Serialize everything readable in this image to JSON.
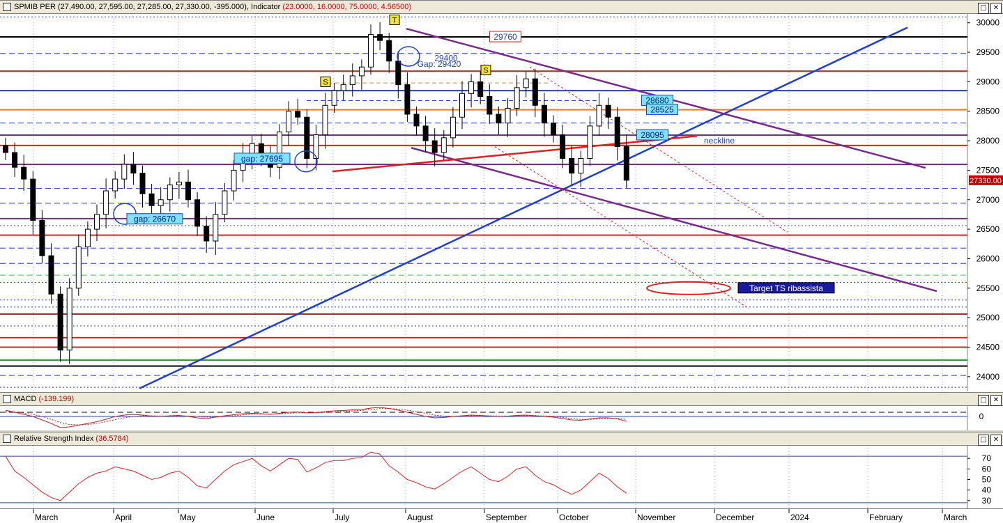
{
  "main_pane": {
    "title": "SPMIB PER",
    "ohlc": "(27,490.00, 27,595.00, 27,285.00, 27,330.00, -395.000)",
    "indicator_label": "Indicator",
    "indicator_values": "(23.0000, 16.0000, 75.0000, 4.56500)"
  },
  "macd_pane": {
    "title": "MACD",
    "value": "(-139.199)"
  },
  "rsi_pane": {
    "title": "Relative Strength Index",
    "value": "(36.5784)"
  },
  "window_buttons": {
    "restore": "□",
    "close": "✕"
  },
  "colors": {
    "price_tag_bg": "#c00000",
    "trendline_blue": "#1f3fd0",
    "channel_purple": "#7a2a8a",
    "neckline_red": "#e02020",
    "label_box": "#7fe3ff"
  },
  "chart_data": [
    {
      "type": "candlestick",
      "title": "SPMIB PER",
      "y_axis_ticks": [
        30000,
        29500,
        29000,
        28500,
        28000,
        27500,
        27000,
        26500,
        26000,
        25500,
        25000,
        24500,
        24000
      ],
      "ylim": [
        23750,
        30150
      ],
      "last_price_tag": "27330.00",
      "x_axis_labels": [
        "March",
        "April",
        "May",
        "June",
        "July",
        "August",
        "September",
        "October",
        "November",
        "December",
        "2024",
        "February",
        "March"
      ],
      "closes": [
        27800,
        27550,
        27350,
        26650,
        26050,
        25400,
        24450,
        25500,
        26200,
        26500,
        26750,
        27150,
        27350,
        27600,
        27450,
        27100,
        26900,
        27000,
        27250,
        27300,
        27000,
        26550,
        26300,
        26750,
        27150,
        27500,
        27750,
        27950,
        27700,
        27550,
        28150,
        28500,
        28400,
        27700,
        28100,
        28600,
        28850,
        28950,
        29100,
        29250,
        29800,
        29700,
        29350,
        28950,
        28450,
        28250,
        28000,
        27800,
        28050,
        28400,
        28800,
        29000,
        28750,
        28450,
        28300,
        28550,
        28900,
        29050,
        28600,
        28300,
        28100,
        27700,
        27450,
        27700,
        28250,
        28600,
        28400,
        27900,
        27330
      ],
      "annotations": [
        {
          "text": "T",
          "price": 30050
        },
        {
          "text": "S",
          "price": 29000
        },
        {
          "text": "S",
          "price": 29200
        },
        {
          "text": "29760",
          "price": 29760
        },
        {
          "text": "29400",
          "price": 29400
        },
        {
          "text": "Gap: 29420",
          "price": 29300
        },
        {
          "text": "28680",
          "price": 28680
        },
        {
          "text": "28525",
          "price": 28525
        },
        {
          "text": "28095",
          "price": 28095
        },
        {
          "text": "neckline",
          "price": 28000
        },
        {
          "text": "gap: 27695",
          "price": 27695
        },
        {
          "text": "gap: 26670",
          "price": 26670
        },
        {
          "text": "Target TS ribassista",
          "price": 25500
        }
      ],
      "horizontal_levels": [
        {
          "price": 30100,
          "style": "dotted",
          "color": "#1f3fd0"
        },
        {
          "price": 29760,
          "style": "solid",
          "color": "#000000"
        },
        {
          "price": 29480,
          "style": "dashed",
          "color": "#1f3fd0"
        },
        {
          "price": 29180,
          "style": "solid",
          "color": "#e02020"
        },
        {
          "price": 28850,
          "style": "solid",
          "color": "#1f3fd0"
        },
        {
          "price": 28525,
          "style": "solid",
          "color": "#f07820"
        },
        {
          "price": 28300,
          "style": "dashed",
          "color": "#1f3fd0"
        },
        {
          "price": 28095,
          "style": "solid",
          "color": "#7a2a8a"
        },
        {
          "price": 27920,
          "style": "solid",
          "color": "#e02020"
        },
        {
          "price": 27600,
          "style": "solid",
          "color": "#7a2a8a"
        },
        {
          "price": 27190,
          "style": "dashed",
          "color": "#1f3fd0"
        },
        {
          "price": 26940,
          "style": "dashed",
          "color": "#1f3fd0"
        },
        {
          "price": 26680,
          "style": "solid",
          "color": "#7a2a8a"
        },
        {
          "price": 26560,
          "style": "dotted",
          "color": "#1f3fd0"
        },
        {
          "price": 26400,
          "style": "solid",
          "color": "#e02020"
        },
        {
          "price": 26180,
          "style": "dashed",
          "color": "#1f3fd0"
        },
        {
          "price": 25920,
          "style": "dashed",
          "color": "#1f3fd0"
        },
        {
          "price": 25720,
          "style": "dashed",
          "color": "#40c040"
        },
        {
          "price": 25600,
          "style": "dotted",
          "color": "#1f3fd0"
        },
        {
          "price": 25300,
          "style": "dotted",
          "color": "#1f3fd0"
        },
        {
          "price": 25180,
          "style": "dotted",
          "color": "#1f3fd0"
        },
        {
          "price": 25060,
          "style": "solid",
          "color": "#a03030"
        },
        {
          "price": 24860,
          "style": "dotted",
          "color": "#1f3fd0"
        },
        {
          "price": 24660,
          "style": "solid",
          "color": "#e02020"
        },
        {
          "price": 24500,
          "style": "solid",
          "color": "#e02020"
        },
        {
          "price": 24280,
          "style": "solid",
          "color": "#20a020"
        },
        {
          "price": 24180,
          "style": "solid",
          "color": "#000000"
        },
        {
          "price": 24020,
          "style": "dashed",
          "color": "#1f3fd0"
        },
        {
          "price": 23820,
          "style": "dotted",
          "color": "#1f3fd0"
        }
      ]
    },
    {
      "type": "line",
      "title": "MACD",
      "y_axis_ticks": [
        0
      ],
      "ylim": [
        -400,
        300
      ],
      "series": [
        {
          "values": [
            180,
            120,
            60,
            0,
            -100,
            -200,
            -320,
            -300,
            -250,
            -200,
            -150,
            -80,
            0,
            40,
            60,
            40,
            10,
            0,
            20,
            30,
            0,
            -40,
            -60,
            -20,
            20,
            50,
            80,
            90,
            80,
            60,
            90,
            120,
            130,
            100,
            110,
            140,
            160,
            170,
            190,
            200,
            240,
            260,
            230,
            180,
            120,
            60,
            0,
            -40,
            -30,
            0,
            20,
            40,
            30,
            10,
            0,
            10,
            30,
            40,
            20,
            0,
            -20,
            -60,
            -100,
            -110,
            -70,
            -40,
            -40,
            -70,
            -139
          ]
        },
        {
          "values": [
            150,
            130,
            100,
            60,
            0,
            -80,
            -180,
            -230,
            -240,
            -230,
            -200,
            -150,
            -90,
            -40,
            0,
            20,
            20,
            15,
            15,
            20,
            15,
            0,
            -20,
            -20,
            0,
            20,
            45,
            65,
            72,
            70,
            75,
            90,
            105,
            105,
            105,
            115,
            130,
            145,
            160,
            175,
            200,
            225,
            228,
            210,
            180,
            140,
            90,
            40,
            10,
            5,
            10,
            20,
            25,
            20,
            12,
            10,
            18,
            28,
            25,
            15,
            0,
            -25,
            -60,
            -85,
            -85,
            -70,
            -55,
            -55,
            -80
          ]
        }
      ]
    },
    {
      "type": "line",
      "title": "Relative Strength Index",
      "y_axis_ticks": [
        70,
        60,
        50,
        40,
        30
      ],
      "ylim": [
        22,
        82
      ],
      "series": [
        {
          "values": [
            72,
            58,
            52,
            45,
            38,
            33,
            30,
            38,
            46,
            52,
            56,
            58,
            62,
            60,
            58,
            54,
            50,
            52,
            56,
            58,
            52,
            44,
            42,
            50,
            58,
            64,
            67,
            70,
            63,
            58,
            64,
            70,
            69,
            57,
            61,
            66,
            68,
            68,
            70,
            71,
            76,
            74,
            63,
            57,
            50,
            47,
            43,
            41,
            46,
            52,
            58,
            62,
            56,
            50,
            48,
            53,
            60,
            62,
            54,
            48,
            45,
            40,
            36,
            40,
            48,
            56,
            51,
            43,
            37
          ]
        }
      ]
    }
  ]
}
